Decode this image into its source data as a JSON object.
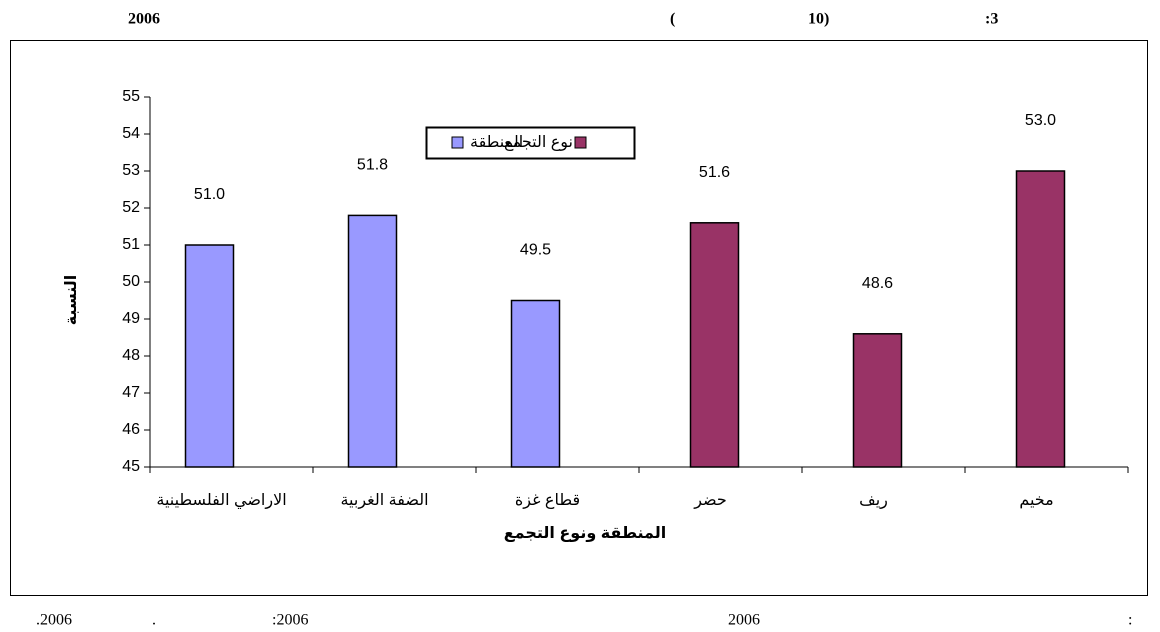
{
  "header": [
    "2006",
    "(",
    "10)",
    ":3"
  ],
  "footer": [
    ".2006",
    ".",
    ":2006",
    "2006",
    ":"
  ],
  "chart_data": {
    "type": "bar",
    "x_label": "المنطقة  ونوع التجمع",
    "y_label": "النسبة",
    "categories": [
      "الاراضي الفلسطينية",
      "الضفة الغربية",
      "قطاع غزة",
      "حضر",
      "ريف",
      "مخيم"
    ],
    "series": [
      {
        "name": "المنطقة",
        "color": "#9999ff",
        "values": [
          51,
          51.8,
          49.5,
          null,
          null,
          null
        ],
        "value_labels": [
          "51.0",
          "51.8",
          "49.5",
          null,
          null,
          null
        ]
      },
      {
        "name": "نوع التجمع",
        "color": "#993366",
        "values": [
          null,
          null,
          null,
          51.6,
          48.6,
          53
        ],
        "value_labels": [
          null,
          null,
          null,
          "51.6",
          "48.6",
          "53.0"
        ]
      }
    ],
    "ylim": [
      45,
      55
    ],
    "yticks": [
      45,
      46,
      47,
      48,
      49,
      50,
      51,
      52,
      53,
      54,
      55
    ],
    "grid": false
  }
}
